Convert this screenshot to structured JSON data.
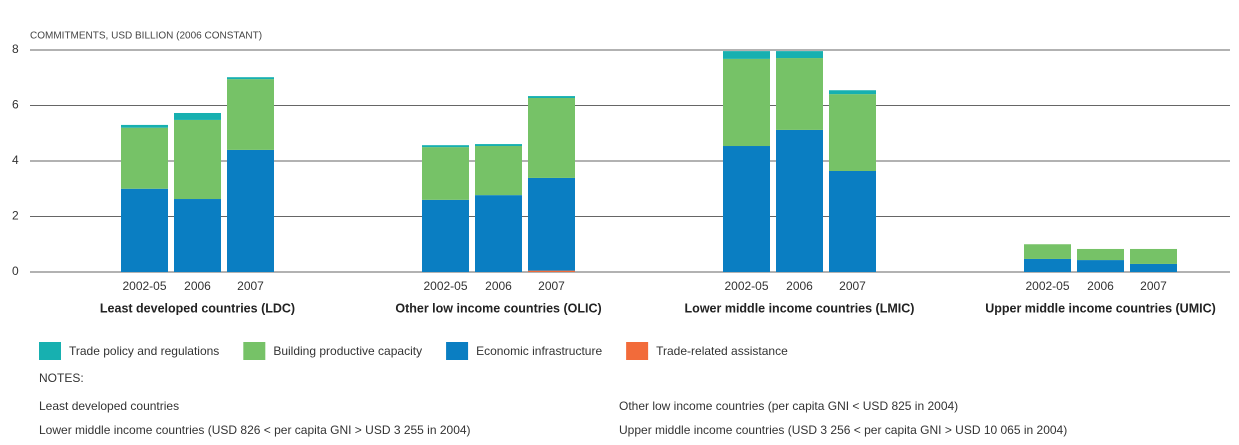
{
  "chart_data": {
    "type": "grouped-stacked-bar",
    "y_label": "COMMITMENTS, USD BILLION (2006 CONSTANT)",
    "categories": [
      "Least developed countries (LDC)",
      "Other low income countries (OLIC)",
      "Lower middle income countries (LMIC)",
      "Upper middle income countries (UMIC)"
    ],
    "subcategories": [
      "2002-05",
      "2006",
      "2007"
    ],
    "series": [
      {
        "name": "Trade-related assistance",
        "color": "#f26b3a",
        "values": [
          [
            0,
            0,
            0
          ],
          [
            0,
            0,
            0.05
          ],
          [
            0,
            0,
            0
          ],
          [
            0,
            0,
            0
          ]
        ]
      },
      {
        "name": "Economic infrastructure",
        "color": "#0a7ec2",
        "values": [
          [
            3.0,
            2.63,
            4.4
          ],
          [
            2.6,
            2.77,
            3.34
          ],
          [
            4.54,
            5.12,
            3.64
          ],
          [
            0.47,
            0.43,
            0.29
          ]
        ]
      },
      {
        "name": "Building productive capacity",
        "color": "#76c267",
        "values": [
          [
            2.2,
            2.85,
            2.55
          ],
          [
            1.9,
            1.77,
            2.88
          ],
          [
            3.14,
            2.59,
            2.77
          ],
          [
            0.53,
            0.4,
            0.54
          ]
        ]
      },
      {
        "name": "Trade policy and regulations",
        "color": "#17b0b0",
        "values": [
          [
            0.1,
            0.25,
            0.07
          ],
          [
            0.07,
            0.07,
            0.07
          ],
          [
            0.28,
            0.25,
            0.14
          ],
          [
            0,
            0,
            0
          ]
        ]
      }
    ],
    "legend_order": [
      3,
      2,
      1,
      0
    ],
    "ylim": [
      0,
      8
    ],
    "yticks": [
      0,
      2,
      4,
      6,
      8
    ],
    "grid": true
  },
  "notes": {
    "heading": "NOTES:",
    "items": [
      "Least developed countries",
      "Other low income countries (per capita GNI < USD 825 in 2004)",
      "Lower middle income countries (USD 826 < per capita GNI > USD 3 255 in 2004)",
      "Upper middle income countries (USD 3 256 < per capita GNI > USD 10 065 in 2004)"
    ]
  }
}
